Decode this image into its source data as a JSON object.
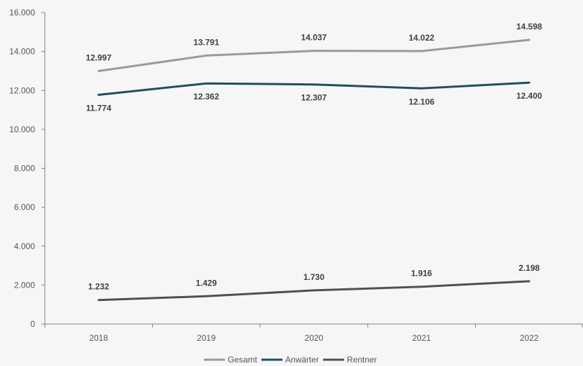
{
  "chart_data": {
    "type": "line",
    "categories": [
      "2018",
      "2019",
      "2020",
      "2021",
      "2022"
    ],
    "ylim": [
      0,
      16000
    ],
    "yticks": [
      0,
      2000,
      4000,
      6000,
      8000,
      10000,
      12000,
      14000,
      16000
    ],
    "ytick_labels": [
      "0",
      "2.000",
      "4.000",
      "6.000",
      "8.000",
      "10.000",
      "12.000",
      "14.000",
      "16.000"
    ],
    "grid": false,
    "legend_position": "bottom",
    "series": [
      {
        "name": "Gesamt",
        "color": "#9a9a9e",
        "values": [
          12997,
          13791,
          14037,
          14022,
          14598
        ],
        "labels": [
          "12.997",
          "13.791",
          "14.037",
          "14.022",
          "14.598"
        ],
        "label_position": "above"
      },
      {
        "name": "Anwärter",
        "color": "#1f4f5e",
        "values": [
          11774,
          12362,
          12307,
          12106,
          12400
        ],
        "labels": [
          "11.774",
          "12.362",
          "12.307",
          "12.106",
          "12.400"
        ],
        "label_position": "below"
      },
      {
        "name": "Rentner",
        "color": "#505050",
        "values": [
          1232,
          1429,
          1730,
          1916,
          2198
        ],
        "labels": [
          "1.232",
          "1.429",
          "1.730",
          "1.916",
          "2.198"
        ],
        "label_position": "above"
      }
    ]
  }
}
